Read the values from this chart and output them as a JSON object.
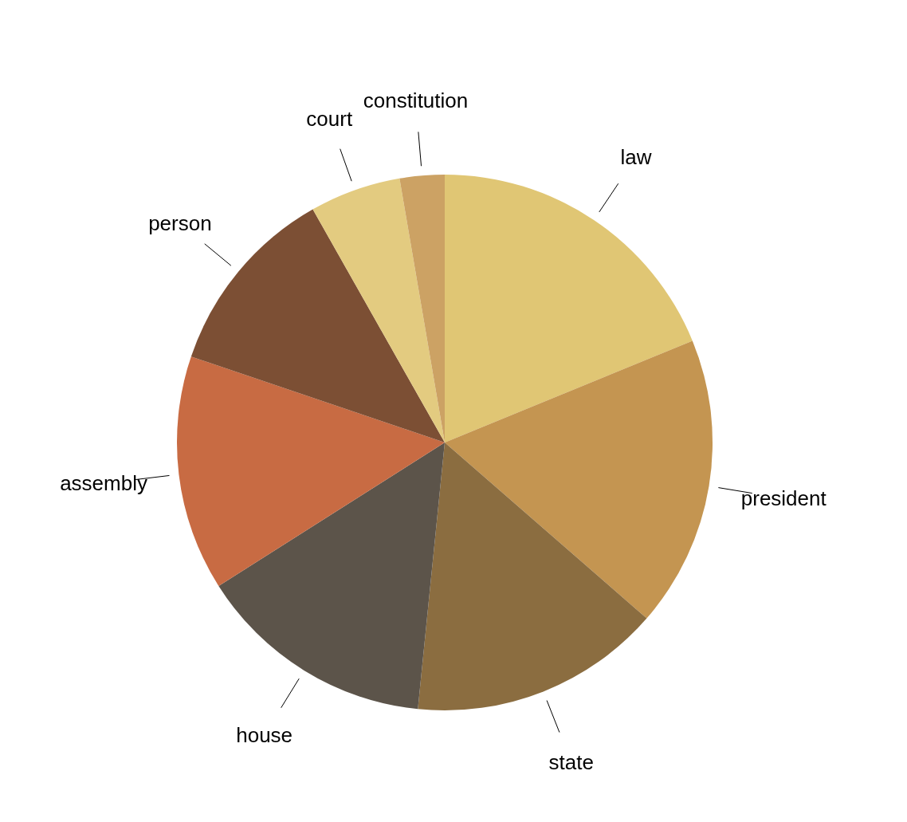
{
  "chart_data": {
    "type": "pie",
    "categories": [
      "law",
      "president",
      "state",
      "house",
      "assembly",
      "person",
      "court",
      "constitution"
    ],
    "values": [
      18.8,
      17.6,
      15.2,
      14.4,
      14.2,
      11.6,
      5.5,
      2.7
    ],
    "colors": [
      "#e0c674",
      "#c49551",
      "#8b6d40",
      "#5c544a",
      "#c86b43",
      "#7c4f34",
      "#e3cb80",
      "#cca264"
    ]
  }
}
